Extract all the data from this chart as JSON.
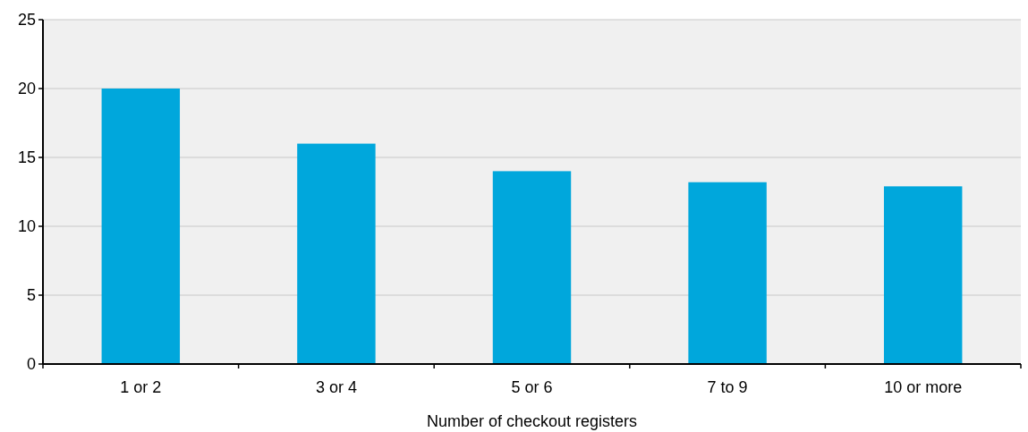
{
  "chart_data": {
    "type": "bar",
    "xlabel": "Number of checkout registers",
    "categories": [
      "1 or 2",
      "3 or 4",
      "5 or 6",
      "7 to 9",
      "10 or more"
    ],
    "values": [
      20,
      16,
      14,
      13.2,
      12.9
    ],
    "color": "#00a7dc",
    "ylim": [
      0,
      25
    ],
    "yticks": [
      0,
      5,
      10,
      15,
      20,
      25
    ],
    "grid": "y"
  }
}
